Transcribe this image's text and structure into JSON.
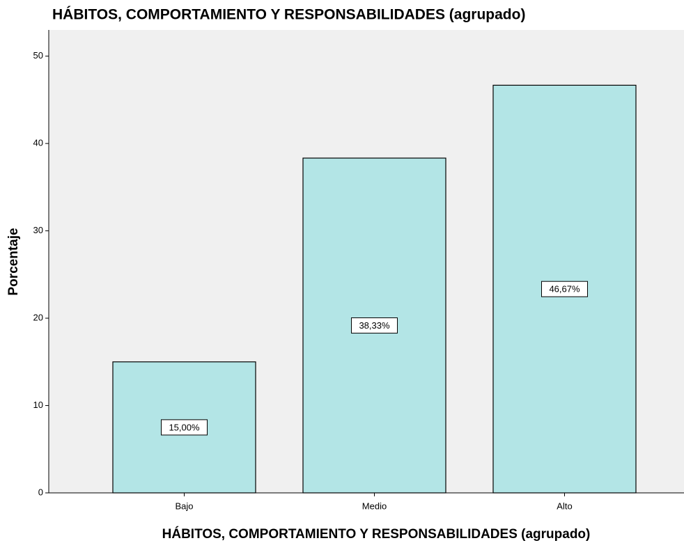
{
  "chart_data": {
    "type": "bar",
    "title": "HÁBITOS, COMPORTAMIENTO Y RESPONSABILIDADES (agrupado)",
    "x_label": "HÁBITOS, COMPORTAMIENTO Y RESPONSABILIDADES (agrupado)",
    "y_label": "Porcentaje",
    "categories": [
      "Bajo",
      "Medio",
      "Alto"
    ],
    "values": [
      15.0,
      38.33,
      46.67
    ],
    "value_labels": [
      "15,00%",
      "38,33%",
      "46,67%"
    ],
    "color": "#b3e5e6",
    "ylim": [
      0,
      53
    ],
    "yticks": [
      0,
      10,
      20,
      30,
      40,
      50
    ],
    "grid": false
  }
}
